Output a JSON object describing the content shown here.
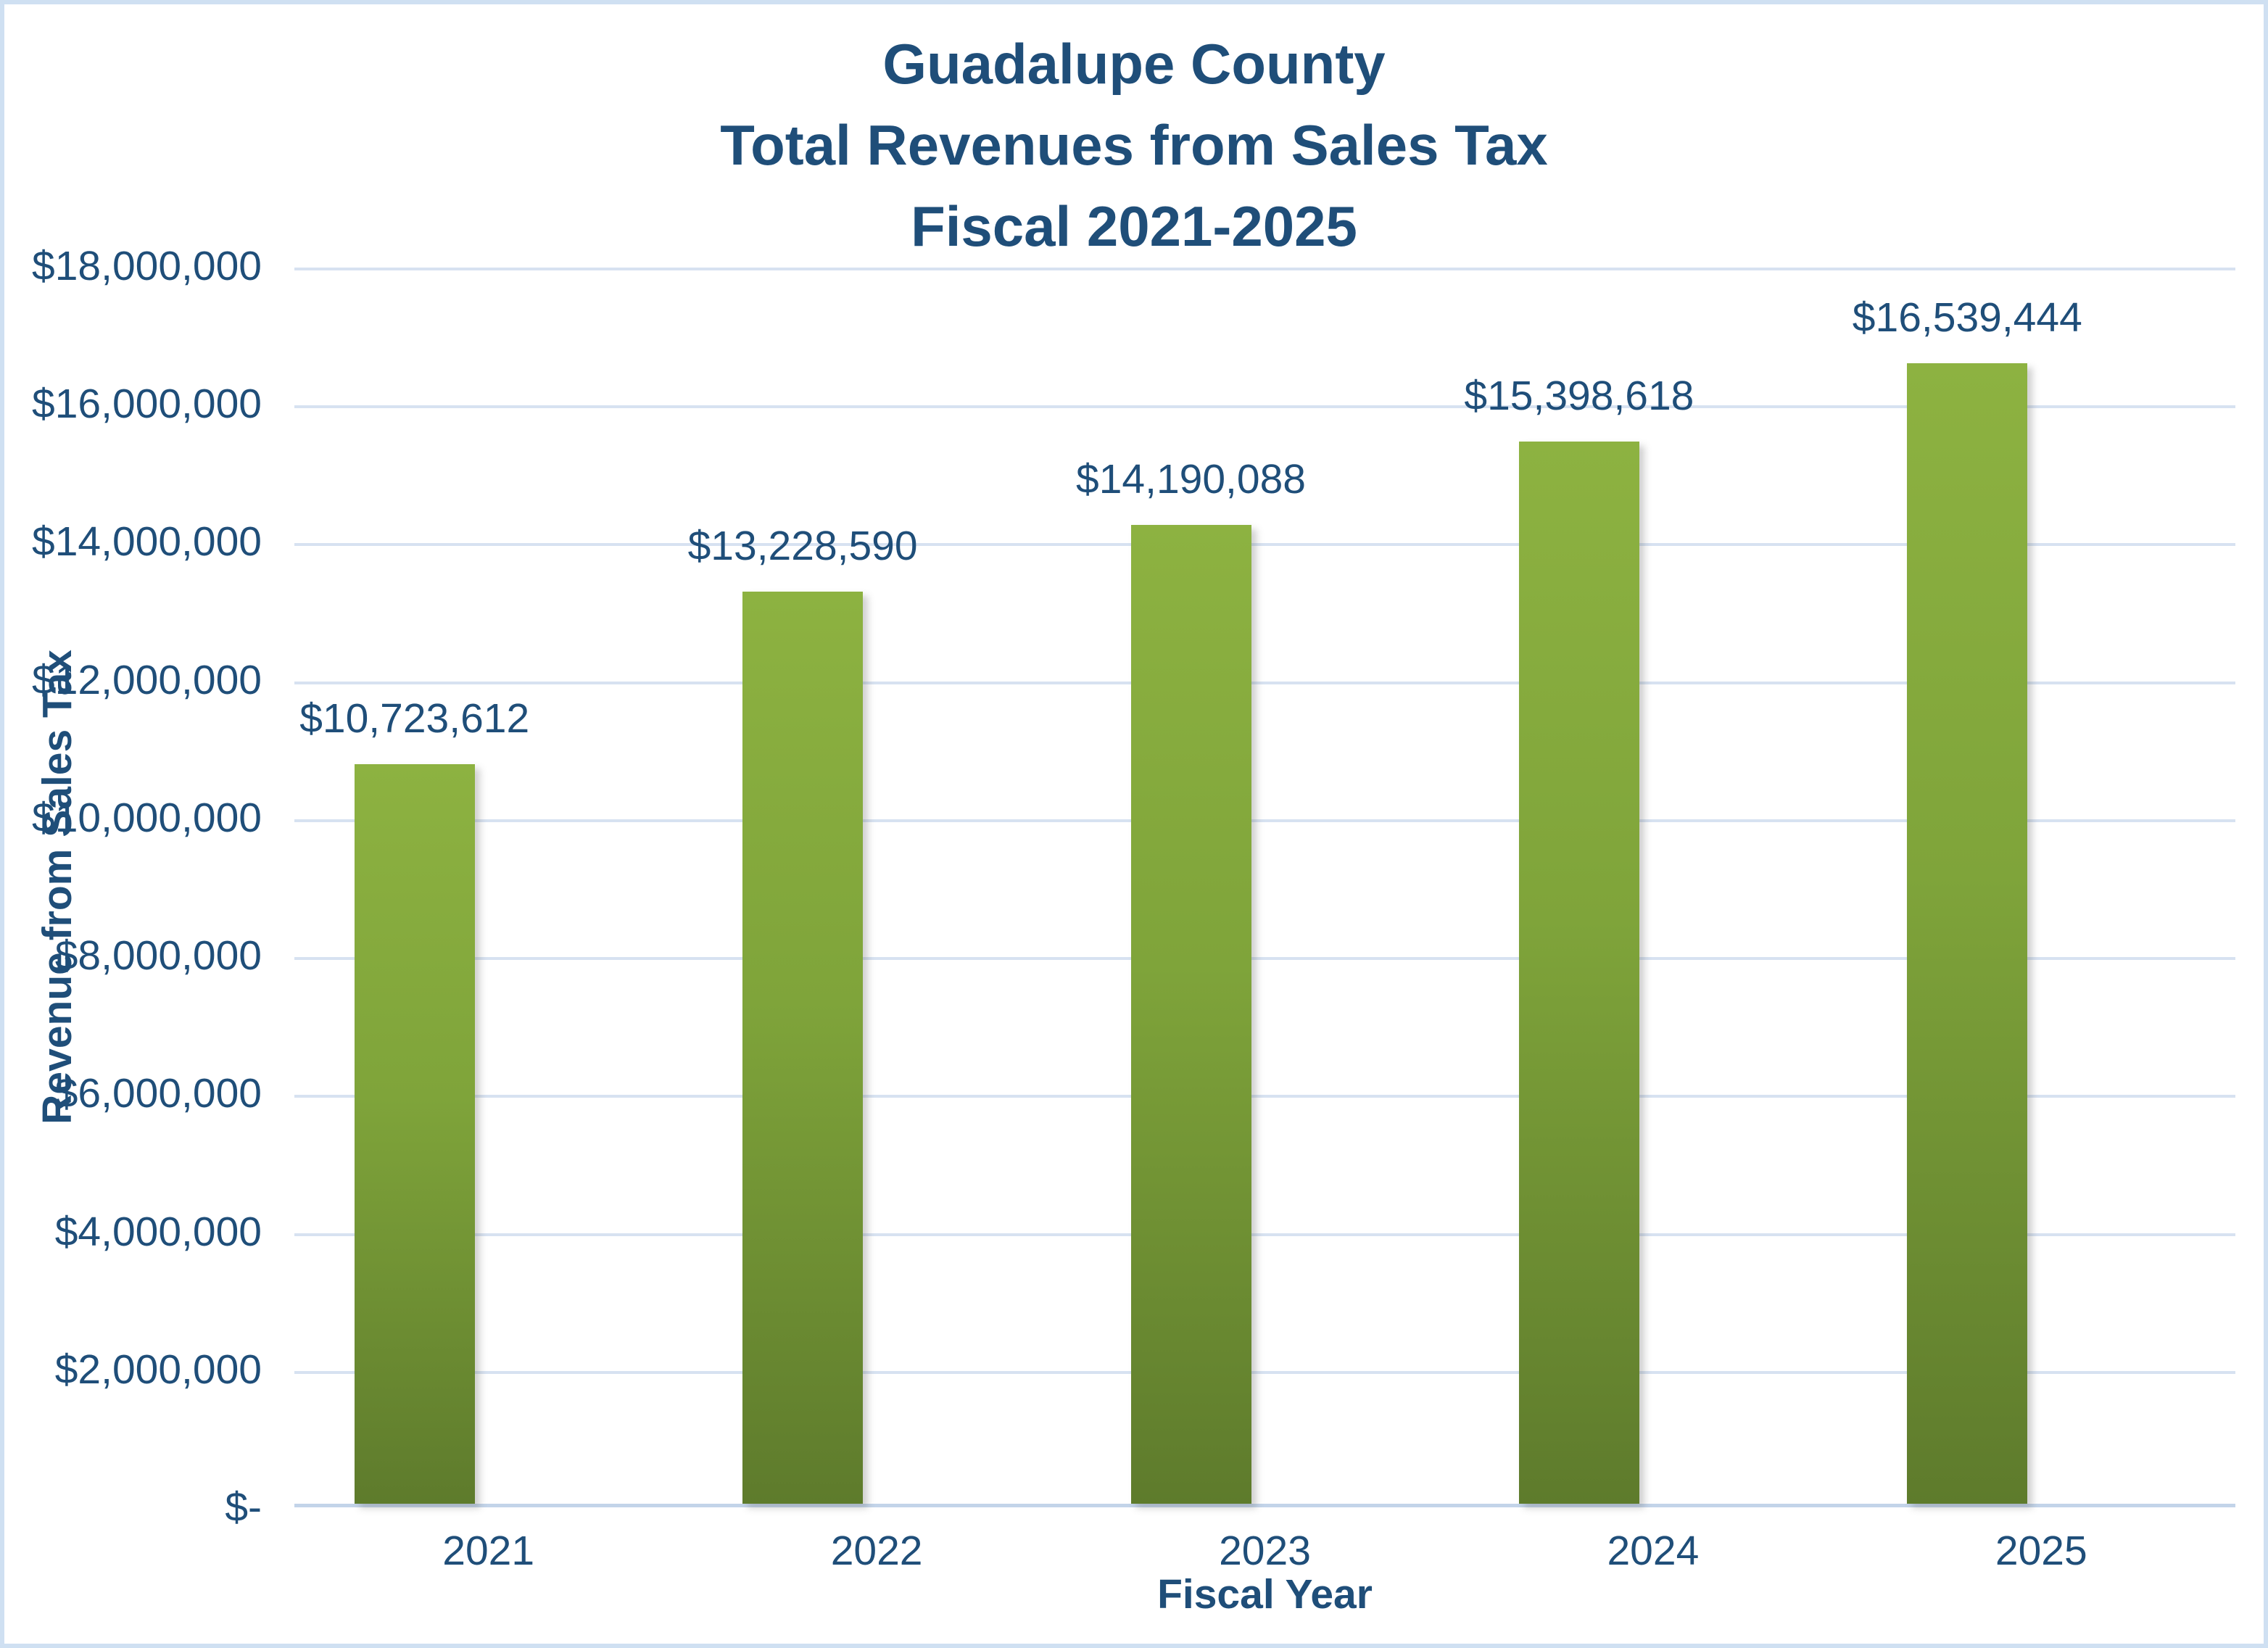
{
  "chart_data": {
    "type": "bar",
    "title_lines": [
      "Guadalupe County",
      "Total Revenues from Sales Tax",
      "Fiscal 2021-2025"
    ],
    "title": "Guadalupe County Total Revenues from Sales Tax Fiscal 2021-2025",
    "xlabel": "Fiscal Year",
    "ylabel": "Revenue from Sales Tax",
    "categories": [
      "2021",
      "2022",
      "2023",
      "2024",
      "2025"
    ],
    "values": [
      10723612,
      13228590,
      14190088,
      15398618,
      16539444
    ],
    "data_labels": [
      "$10,723,612",
      "$13,228,590",
      "$14,190,088",
      "$15,398,618",
      "$16,539,444"
    ],
    "ylim": [
      0,
      18000000
    ],
    "ytick_step": 2000000,
    "yticks": [
      {
        "value": 18000000,
        "label": "$18,000,000"
      },
      {
        "value": 16000000,
        "label": "$16,000,000"
      },
      {
        "value": 14000000,
        "label": "$14,000,000"
      },
      {
        "value": 12000000,
        "label": "$12,000,000"
      },
      {
        "value": 10000000,
        "label": "$10,000,000"
      },
      {
        "value": 8000000,
        "label": "$8,000,000"
      },
      {
        "value": 6000000,
        "label": "$6,000,000"
      },
      {
        "value": 4000000,
        "label": "$4,000,000"
      },
      {
        "value": 2000000,
        "label": "$2,000,000"
      },
      {
        "value": 0,
        "label": "$-"
      }
    ],
    "grid": "horizontal",
    "legend_position": "none",
    "colors": {
      "bar_gradient_top": "#8db241",
      "bar_gradient_bottom": "#5e7b2c",
      "text": "#1F4E79",
      "gridline": "#d7e2f1",
      "axis_line": "#c3d4e9",
      "page_border": "#cfe0f2",
      "background": "#ffffff"
    }
  }
}
